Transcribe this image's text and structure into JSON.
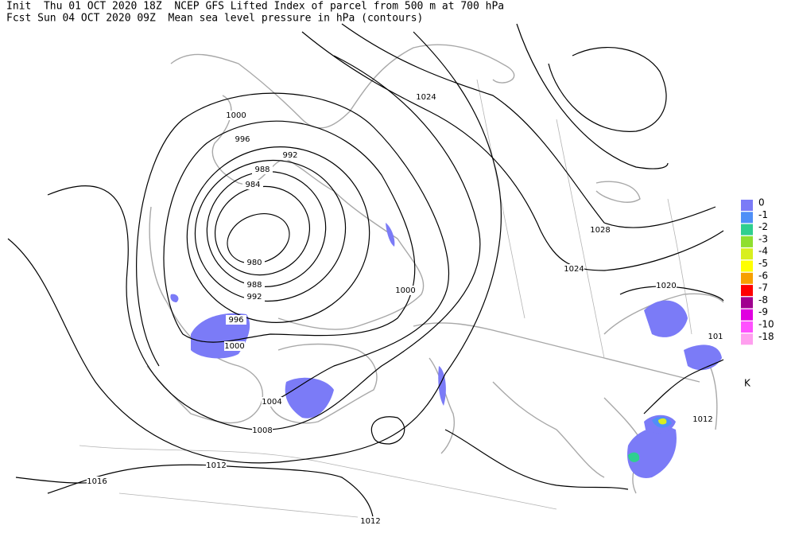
{
  "header": {
    "line1": "Init  Thu 01 OCT 2020 18Z  NCEP GFS Lifted Index of parcel from 500 m at 700 hPa",
    "line2": "Fcst Sun 04 OCT 2020 09Z  Mean sea level pressure in hPa (contours)"
  },
  "contour_labels": [
    "1000",
    "996",
    "992",
    "988",
    "984",
    "980",
    "988",
    "992",
    "996",
    "1000",
    "1004",
    "1008",
    "1012",
    "1016",
    "1012",
    "1024",
    "1028",
    "1024",
    "1020",
    "1000",
    "1012",
    "101"
  ],
  "legend": {
    "unit": "K",
    "items": [
      {
        "label": "0",
        "color": "#7b7bf7"
      },
      {
        "label": "-1",
        "color": "#4f8ff7"
      },
      {
        "label": "-2",
        "color": "#2fcf8f"
      },
      {
        "label": "-3",
        "color": "#8fdf2f"
      },
      {
        "label": "-4",
        "color": "#d8ef1f"
      },
      {
        "label": "-5",
        "color": "#ffff00"
      },
      {
        "label": "-6",
        "color": "#f7a000"
      },
      {
        "label": "-7",
        "color": "#ff0000"
      },
      {
        "label": "-8",
        "color": "#a0008f"
      },
      {
        "label": "-9",
        "color": "#e000e0"
      },
      {
        "label": "-10",
        "color": "#ff50ff"
      },
      {
        "label": "-18",
        "color": "#ff9fef"
      }
    ]
  }
}
